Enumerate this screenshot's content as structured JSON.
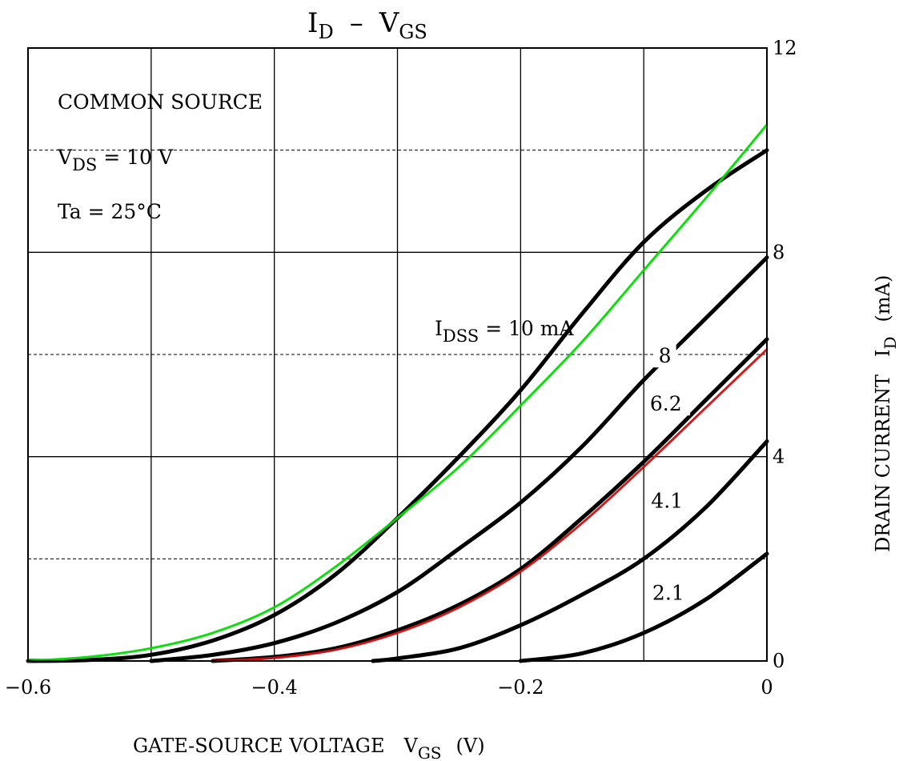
{
  "chart_data": {
    "type": "line",
    "title": {
      "main": "I",
      "main_sub": "D",
      "dash": "–",
      "right": "V",
      "right_sub": "GS"
    },
    "xlabel": {
      "text": "GATE-SOURCE VOLTAGE",
      "symbol": "V",
      "symbol_sub": "GS",
      "unit": "(V)"
    },
    "ylabel": {
      "text": "DRAIN CURRENT",
      "symbol": "I",
      "symbol_sub": "D",
      "unit": "(mA)"
    },
    "xlim": [
      -0.6,
      0
    ],
    "ylim": [
      0,
      12
    ],
    "x_ticks": [
      {
        "value": -0.6,
        "label": "−0.6"
      },
      {
        "value": -0.4,
        "label": "−0.4"
      },
      {
        "value": -0.2,
        "label": "−0.2"
      },
      {
        "value": 0,
        "label": "0"
      }
    ],
    "y_ticks": [
      {
        "value": 0,
        "label": "0"
      },
      {
        "value": 4,
        "label": "4"
      },
      {
        "value": 8,
        "label": "8"
      },
      {
        "value": 12,
        "label": "12"
      }
    ],
    "grid": {
      "major_x": [
        -0.5,
        -0.4,
        -0.3,
        -0.2,
        -0.1
      ],
      "major_y": [
        4,
        8
      ],
      "minor_y": [
        2,
        6,
        10
      ]
    },
    "conditions": {
      "line1": "COMMON SOURCE",
      "vds_prefix": "V",
      "vds_sub": "DS",
      "vds_value": " = 10 V",
      "ta": "Ta = 25°C"
    },
    "idss_label": {
      "prefix": "I",
      "sub": "DSS",
      "value": " = 10 mA"
    },
    "series": [
      {
        "name": "I_DSS = 10 mA",
        "color": "#000000",
        "label": "",
        "points": [
          [
            -0.6,
            0
          ],
          [
            -0.55,
            0.02
          ],
          [
            -0.5,
            0.12
          ],
          [
            -0.45,
            0.4
          ],
          [
            -0.4,
            0.9
          ],
          [
            -0.35,
            1.7
          ],
          [
            -0.3,
            2.8
          ],
          [
            -0.25,
            4.0
          ],
          [
            -0.2,
            5.3
          ],
          [
            -0.15,
            6.8
          ],
          [
            -0.1,
            8.2
          ],
          [
            -0.05,
            9.2
          ],
          [
            0,
            10.0
          ]
        ]
      },
      {
        "name": "10.5 mA",
        "color": "#00dd00",
        "label": "",
        "points": [
          [
            -0.6,
            0
          ],
          [
            -0.55,
            0.08
          ],
          [
            -0.5,
            0.25
          ],
          [
            -0.45,
            0.55
          ],
          [
            -0.4,
            1.05
          ],
          [
            -0.35,
            1.85
          ],
          [
            -0.3,
            2.8
          ],
          [
            -0.25,
            3.8
          ],
          [
            -0.2,
            5.0
          ],
          [
            -0.15,
            6.25
          ],
          [
            -0.1,
            7.65
          ],
          [
            -0.05,
            9.05
          ],
          [
            0,
            10.5
          ]
        ]
      },
      {
        "name": "8",
        "color": "#000000",
        "label": "8",
        "points": [
          [
            -0.5,
            0.0
          ],
          [
            -0.45,
            0.12
          ],
          [
            -0.4,
            0.35
          ],
          [
            -0.35,
            0.75
          ],
          [
            -0.3,
            1.35
          ],
          [
            -0.25,
            2.2
          ],
          [
            -0.2,
            3.1
          ],
          [
            -0.15,
            4.2
          ],
          [
            -0.1,
            5.5
          ],
          [
            -0.05,
            6.7
          ],
          [
            0,
            7.9
          ]
        ]
      },
      {
        "name": "6.2",
        "color": "#000000",
        "label": "6.2",
        "points": [
          [
            -0.45,
            0.0
          ],
          [
            -0.4,
            0.08
          ],
          [
            -0.35,
            0.25
          ],
          [
            -0.3,
            0.6
          ],
          [
            -0.25,
            1.1
          ],
          [
            -0.2,
            1.8
          ],
          [
            -0.15,
            2.8
          ],
          [
            -0.1,
            3.9
          ],
          [
            -0.05,
            5.1
          ],
          [
            0,
            6.3
          ]
        ]
      },
      {
        "name": "6.2 red",
        "color": "#cc1111",
        "label": "",
        "points": [
          [
            -0.45,
            0.0
          ],
          [
            -0.4,
            0.06
          ],
          [
            -0.35,
            0.22
          ],
          [
            -0.3,
            0.55
          ],
          [
            -0.25,
            1.05
          ],
          [
            -0.2,
            1.75
          ],
          [
            -0.15,
            2.7
          ],
          [
            -0.1,
            3.8
          ],
          [
            -0.05,
            4.95
          ],
          [
            0,
            6.1
          ]
        ]
      },
      {
        "name": "4.1",
        "color": "#000000",
        "label": "4.1",
        "points": [
          [
            -0.32,
            0.0
          ],
          [
            -0.3,
            0.05
          ],
          [
            -0.25,
            0.25
          ],
          [
            -0.2,
            0.7
          ],
          [
            -0.15,
            1.3
          ],
          [
            -0.1,
            2.0
          ],
          [
            -0.05,
            3.0
          ],
          [
            0,
            4.3
          ]
        ]
      },
      {
        "name": "2.1",
        "color": "#000000",
        "label": "2.1",
        "points": [
          [
            -0.2,
            0.0
          ],
          [
            -0.15,
            0.15
          ],
          [
            -0.1,
            0.55
          ],
          [
            -0.05,
            1.2
          ],
          [
            0,
            2.1
          ]
        ]
      }
    ]
  }
}
